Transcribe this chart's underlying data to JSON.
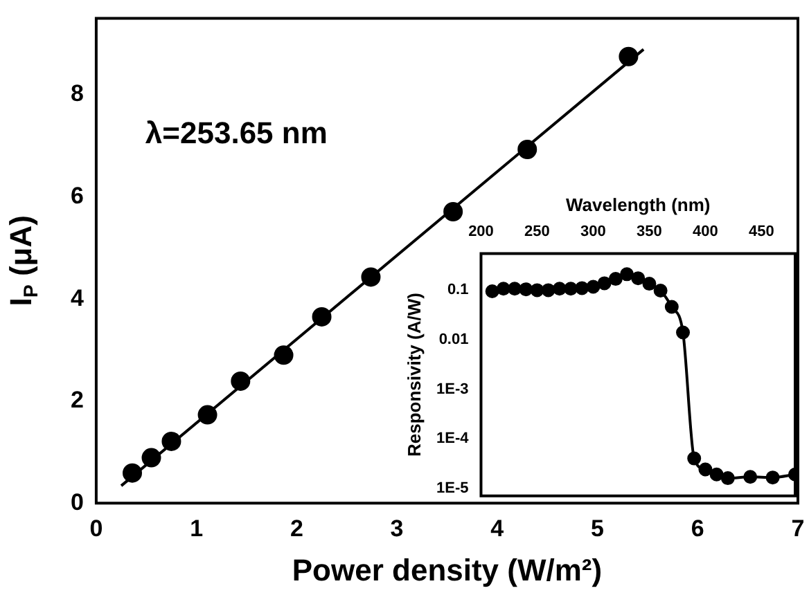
{
  "chart_data": [
    {
      "type": "scatter",
      "xlabel": "Power density (W/m²)",
      "ylabel": "I$_{P}$ (μA)",
      "annotations": [
        "λ=253.65 nm"
      ],
      "marker": "circle",
      "grid": false,
      "legend": false,
      "xlim": [
        0,
        7
      ],
      "xticks": [
        0,
        1,
        2,
        3,
        4,
        5,
        6,
        7
      ],
      "ylim": [
        0,
        9.5
      ],
      "yticks": [
        0,
        2,
        4,
        6,
        8
      ],
      "series": [
        {
          "color": "#000000",
          "x": [
            0.36,
            0.55,
            0.75,
            1.11,
            1.44,
            1.87,
            2.25,
            2.74,
            3.56,
            4.3,
            5.31
          ],
          "values": [
            0.59,
            0.89,
            1.21,
            1.73,
            2.39,
            2.9,
            3.65,
            4.43,
            5.71,
            6.93,
            8.75
          ]
        },
        {
          "type": "line",
          "color": "#000000",
          "marker": "none",
          "x": [
            0.25,
            5.46
          ],
          "values": [
            0.34,
            8.89
          ]
        }
      ]
    },
    {
      "type": "line",
      "xlabel": "Wavelength (nm)",
      "ylabel": "Responsivity (A/W)",
      "marker": "circle",
      "grid": false,
      "legend": false,
      "log": true,
      "xlim": [
        200,
        480
      ],
      "xticks": [
        200,
        250,
        300,
        350,
        400,
        450
      ],
      "ylim": [
        7e-06,
        0.55
      ],
      "yticks": [
        {
          "value": 0.1,
          "label": "0.1"
        },
        {
          "value": 0.01,
          "label": "0.01"
        },
        {
          "value": 0.001,
          "label": "1E-3"
        },
        {
          "value": 0.0001,
          "label": "1E-4"
        },
        {
          "value": 1e-05,
          "label": "1E-5"
        }
      ],
      "series": [
        {
          "color": "#000000",
          "x": [
            210,
            220,
            230,
            240,
            250,
            260,
            270,
            280,
            290,
            300,
            310,
            320,
            330,
            340,
            350,
            360,
            370,
            380,
            390,
            400,
            410,
            420,
            440,
            460,
            480
          ],
          "values": [
            0.095,
            0.107,
            0.107,
            0.104,
            0.1,
            0.1,
            0.107,
            0.107,
            0.11,
            0.117,
            0.138,
            0.169,
            0.21,
            0.174,
            0.135,
            0.098,
            0.046,
            0.014,
            4e-05,
            2.4e-05,
            1.9e-05,
            1.6e-05,
            1.7e-05,
            1.65e-05,
            1.9e-05
          ]
        }
      ]
    }
  ]
}
